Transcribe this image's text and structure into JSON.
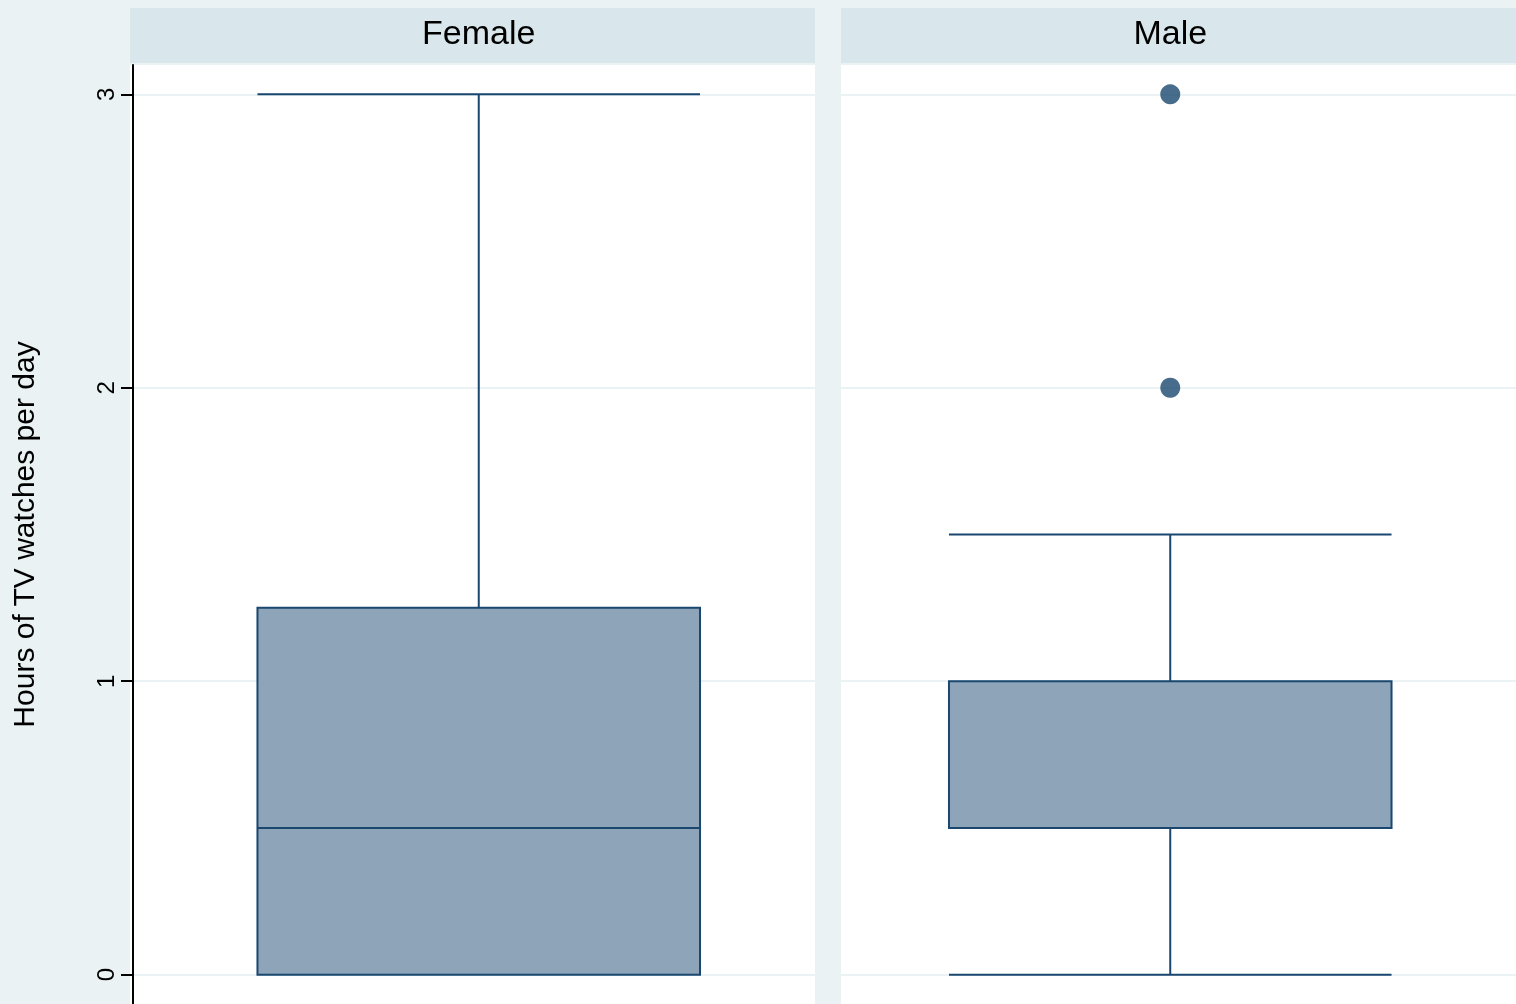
{
  "chart_data": {
    "type": "box",
    "ylabel": "Hours of TV watches per day",
    "categories": [
      "Female",
      "Male"
    ],
    "ylim": [
      -0.1,
      3.1
    ],
    "yticks": [
      0,
      1,
      2,
      3
    ],
    "grid": "y",
    "series": [
      {
        "color": "#8ea5b9",
        "boxes": [
          {
            "low": 0,
            "q1": 0,
            "median": 0.5,
            "q3": 1.25,
            "high": 3
          },
          {
            "low": 0,
            "q1": 0.5,
            "median": 0.5,
            "q3": 1,
            "high": 1.5,
            "outliers": [
              2,
              3
            ]
          }
        ]
      }
    ]
  }
}
